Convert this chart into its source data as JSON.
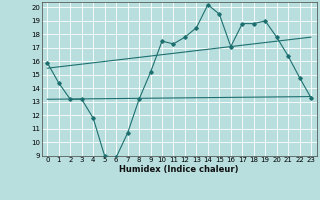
{
  "title": "",
  "xlabel": "Humidex (Indice chaleur)",
  "xlim": [
    -0.5,
    23.5
  ],
  "ylim": [
    9,
    20.4
  ],
  "xticks": [
    0,
    1,
    2,
    3,
    4,
    5,
    6,
    7,
    8,
    9,
    10,
    11,
    12,
    13,
    14,
    15,
    16,
    17,
    18,
    19,
    20,
    21,
    22,
    23
  ],
  "yticks": [
    9,
    10,
    11,
    12,
    13,
    14,
    15,
    16,
    17,
    18,
    19,
    20
  ],
  "bg_color": "#b8dede",
  "grid_color": "#d8f0f0",
  "line_color": "#1e7070",
  "line1_x": [
    0,
    1,
    2,
    3,
    4,
    5,
    6,
    7,
    8,
    9,
    10,
    11,
    12,
    13,
    14,
    15,
    16,
    17,
    18,
    19,
    20,
    21,
    22,
    23
  ],
  "line1_y": [
    15.9,
    14.4,
    13.2,
    13.2,
    11.8,
    9.0,
    8.9,
    10.7,
    13.2,
    15.2,
    17.5,
    17.3,
    17.8,
    18.5,
    20.2,
    19.5,
    17.1,
    18.8,
    18.8,
    19.0,
    17.8,
    16.4,
    14.8,
    13.3
  ],
  "line2_x": [
    0,
    23
  ],
  "line2_y": [
    15.5,
    17.8
  ],
  "line3_x": [
    0,
    23
  ],
  "line3_y": [
    13.2,
    13.4
  ]
}
